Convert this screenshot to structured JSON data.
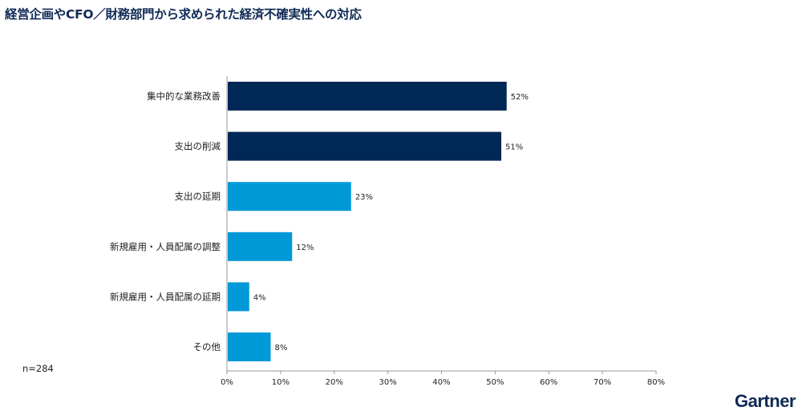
{
  "chart_data": {
    "type": "bar",
    "orientation": "horizontal",
    "title": "経営企画やCFO／財務部門から求められた経済不確実性への対応",
    "categories": [
      "集中的な業務改善",
      "支出の削減",
      "支出の延期",
      "新規雇用・人員配属の調整",
      "新規雇用・人員配属の延期",
      "その他"
    ],
    "values": [
      52,
      51,
      23,
      12,
      4,
      8
    ],
    "value_labels": [
      "52%",
      "51%",
      "23%",
      "12%",
      "4%",
      "8%"
    ],
    "colors": [
      "#002856",
      "#002856",
      "#0099d8",
      "#0099d8",
      "#0099d8",
      "#0099d8"
    ],
    "xlim": [
      0,
      80
    ],
    "xticks": [
      0,
      10,
      20,
      30,
      40,
      50,
      60,
      70,
      80
    ],
    "xtick_labels": [
      "0%",
      "10%",
      "20%",
      "30%",
      "40%",
      "50%",
      "60%",
      "70%",
      "80%"
    ],
    "xlabel": "",
    "ylabel": "",
    "grid": false
  },
  "note": "n=284",
  "logo": "Gartner"
}
